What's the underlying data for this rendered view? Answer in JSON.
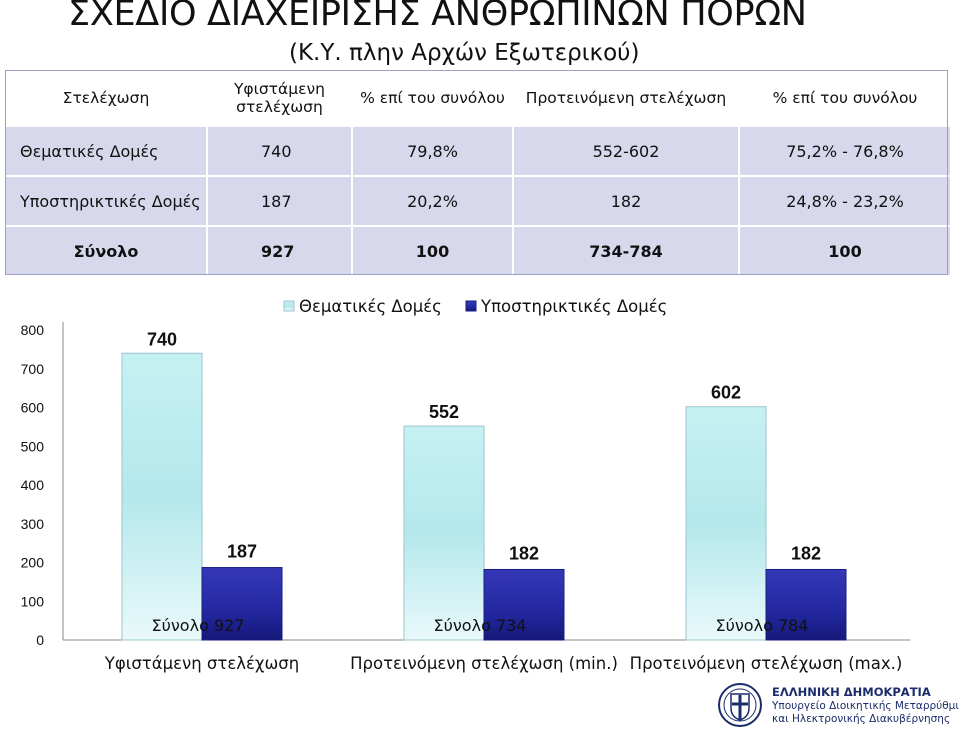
{
  "title_line1": "ΣΧΕΔΙΟ ΔΙΑΧΕΙΡΙΣΗΣ ΑΝΘΡΩΠΙΝΩΝ ΠΟΡΩΝ",
  "title_line2": "(Κ.Υ. πλην Αρχών Εξωτερικού)",
  "table": {
    "headers": [
      "Στελέχωση",
      "Υφιστάμενη στελέχωση",
      "% επί του συνόλου",
      "Προτεινόμενη στελέχωση",
      "% επί του συνόλου"
    ],
    "rows": [
      [
        "Θεματικές Δομές",
        "740",
        "79,8%",
        "552-602",
        "75,2% - 76,8%"
      ],
      [
        "Υποστηρικτικές Δομές",
        "187",
        "20,2%",
        "182",
        "24,8% - 23,2%"
      ]
    ],
    "total": [
      "Σύνολο",
      "927",
      "100",
      "734-784",
      "100"
    ]
  },
  "chart_data": {
    "type": "bar",
    "categories": [
      "Υφιστάμενη στελέχωση",
      "Προτεινόμενη στελέχωση (min.)",
      "Προτεινόμενη στελέχωση (max.)"
    ],
    "series": [
      {
        "name": "Θεματικές Δομές",
        "values": [
          740,
          552,
          602
        ],
        "color": "#b8eaee"
      },
      {
        "name": "Υποστηρικτικές Δομές",
        "values": [
          187,
          182,
          182
        ],
        "color": "#2a2fa8"
      }
    ],
    "data_labels": [
      [
        "740",
        "552",
        "602"
      ],
      [
        "187",
        "182",
        "182"
      ]
    ],
    "totals": [
      "Σύνολο 927",
      "Σύνολο  734",
      "Σύνολο 784"
    ],
    "yticks": [
      "0",
      "100",
      "200",
      "300",
      "400",
      "500",
      "600",
      "700",
      "800"
    ],
    "ylim": [
      0,
      800
    ],
    "legend": "top",
    "grid": false
  },
  "logo": {
    "line1": "ΕΛΛΗΝΙΚΗ ΔΗΜΟΚΡΑΤΙΑ",
    "line2": "Υπουργείο Διοικητικής Μεταρρύθμισης",
    "line3": "και Ηλεκτρονικής Διακυβέρνησης"
  }
}
